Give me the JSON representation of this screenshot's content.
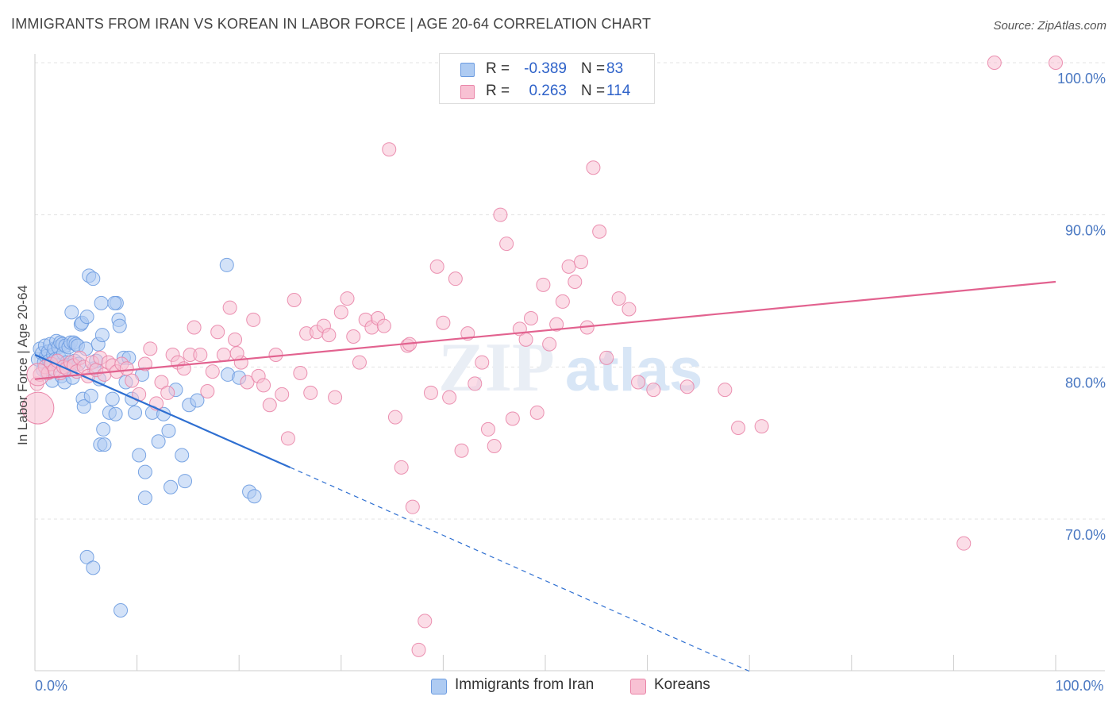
{
  "title": "IMMIGRANTS FROM IRAN VS KOREAN IN LABOR FORCE | AGE 20-64 CORRELATION CHART",
  "source": "Source: ZipAtlas.com",
  "watermark": {
    "zip": "ZIP",
    "atlas": "atlas"
  },
  "legend": {
    "r_label": "R =",
    "n_label": "N =",
    "rows": [
      {
        "r": "-0.389",
        "n": "83",
        "color": "#aecbf2",
        "border": "#6b9be0"
      },
      {
        "r": "0.263",
        "n": "114",
        "color": "#f8c1d3",
        "border": "#e985a8"
      }
    ]
  },
  "bottom_legend": [
    {
      "label": "Immigrants from Iran",
      "color": "#aecbf2",
      "border": "#6b9be0"
    },
    {
      "label": "Koreans",
      "color": "#f8c1d3",
      "border": "#e985a8"
    }
  ],
  "chart_data": {
    "type": "scatter",
    "ylabel": "In Labor Force | Age 20-64",
    "xlim": [
      0,
      100
    ],
    "ylim": [
      60,
      100
    ],
    "y_ticks": [
      {
        "value": 100,
        "label": "100.0%"
      },
      {
        "value": 90,
        "label": "90.0%"
      },
      {
        "value": 80,
        "label": "80.0%"
      },
      {
        "value": 70,
        "label": "70.0%"
      }
    ],
    "x_tick_labels": [
      {
        "value": 0,
        "label": "0.0%"
      },
      {
        "value": 100,
        "label": "100.0%"
      }
    ],
    "grid": true,
    "series": [
      {
        "name": "Immigrants from Iran",
        "color": "#6b9be0",
        "fill": "#aecbf2",
        "trend": {
          "x0": 0,
          "y0": 80.8,
          "x1": 25,
          "y1": 73.4,
          "dash_x1": 70,
          "dash_y1": 60
        },
        "points": [
          [
            0.3,
            80.5
          ],
          [
            0.5,
            81.2
          ],
          [
            0.7,
            80.9
          ],
          [
            0.8,
            79.8
          ],
          [
            0.9,
            80.3
          ],
          [
            1.0,
            81.4
          ],
          [
            1.1,
            80.7
          ],
          [
            1.2,
            79.6
          ],
          [
            1.3,
            81.0
          ],
          [
            1.4,
            80.4
          ],
          [
            1.5,
            81.5
          ],
          [
            1.6,
            80.2
          ],
          [
            1.7,
            79.1
          ],
          [
            1.8,
            80.8
          ],
          [
            1.9,
            81.2
          ],
          [
            2.0,
            80.5
          ],
          [
            2.1,
            81.7
          ],
          [
            2.2,
            80.1
          ],
          [
            2.3,
            81.3
          ],
          [
            2.4,
            80.6
          ],
          [
            2.5,
            81.6
          ],
          [
            2.6,
            79.4
          ],
          [
            2.7,
            81.5
          ],
          [
            2.8,
            80.9
          ],
          [
            2.9,
            79.0
          ],
          [
            3.0,
            81.4
          ],
          [
            3.1,
            80.3
          ],
          [
            3.2,
            80.1
          ],
          [
            3.3,
            81.3
          ],
          [
            3.4,
            80.0
          ],
          [
            3.5,
            81.6
          ],
          [
            3.6,
            83.6
          ],
          [
            3.7,
            79.3
          ],
          [
            3.8,
            81.6
          ],
          [
            3.9,
            80.4
          ],
          [
            4.0,
            81.5
          ],
          [
            4.2,
            81.4
          ],
          [
            4.3,
            80.2
          ],
          [
            4.5,
            82.8
          ],
          [
            4.6,
            82.9
          ],
          [
            4.7,
            77.9
          ],
          [
            4.8,
            77.4
          ],
          [
            5.0,
            81.2
          ],
          [
            5.1,
            83.3
          ],
          [
            5.3,
            86.0
          ],
          [
            5.5,
            78.1
          ],
          [
            5.7,
            85.8
          ],
          [
            5.8,
            79.9
          ],
          [
            6.0,
            80.4
          ],
          [
            6.2,
            81.5
          ],
          [
            6.3,
            79.2
          ],
          [
            6.4,
            74.9
          ],
          [
            6.5,
            84.2
          ],
          [
            6.6,
            82.1
          ],
          [
            6.7,
            75.9
          ],
          [
            6.8,
            74.9
          ],
          [
            7.3,
            77.0
          ],
          [
            7.6,
            77.9
          ],
          [
            7.9,
            76.9
          ],
          [
            8.0,
            84.2
          ],
          [
            8.2,
            83.1
          ],
          [
            8.3,
            82.7
          ],
          [
            8.4,
            64.0
          ],
          [
            8.7,
            80.6
          ],
          [
            8.9,
            79.0
          ],
          [
            9.2,
            80.6
          ],
          [
            9.5,
            77.9
          ],
          [
            9.8,
            77.0
          ],
          [
            10.2,
            74.2
          ],
          [
            10.5,
            79.5
          ],
          [
            10.8,
            73.1
          ],
          [
            10.8,
            71.4
          ],
          [
            11.5,
            77.0
          ],
          [
            12.1,
            75.1
          ],
          [
            12.6,
            76.9
          ],
          [
            13.1,
            75.8
          ],
          [
            13.3,
            72.1
          ],
          [
            13.8,
            78.5
          ],
          [
            14.4,
            74.2
          ],
          [
            14.7,
            72.5
          ],
          [
            15.1,
            77.5
          ],
          [
            15.9,
            77.8
          ],
          [
            18.8,
            86.7
          ],
          [
            18.9,
            79.5
          ],
          [
            20.0,
            79.3
          ],
          [
            21.0,
            71.8
          ],
          [
            21.5,
            71.5
          ],
          [
            7.8,
            84.2
          ],
          [
            5.1,
            67.5
          ],
          [
            5.7,
            66.8
          ]
        ]
      },
      {
        "name": "Koreans",
        "color": "#e985a8",
        "fill": "#f8c1d3",
        "trend": {
          "x0": 0,
          "y0": 79.2,
          "x1": 100,
          "y1": 85.6
        },
        "points": [
          [
            0.2,
            78.9
          ],
          [
            0.5,
            79.5
          ],
          [
            1.0,
            80.0
          ],
          [
            1.3,
            79.6
          ],
          [
            1.6,
            80.2
          ],
          [
            1.9,
            79.8
          ],
          [
            2.2,
            80.4
          ],
          [
            2.5,
            79.6
          ],
          [
            2.8,
            80.0
          ],
          [
            3.1,
            79.9
          ],
          [
            3.5,
            80.3
          ],
          [
            3.8,
            80.1
          ],
          [
            4.1,
            79.7
          ],
          [
            4.4,
            80.6
          ],
          [
            4.8,
            80.0
          ],
          [
            5.2,
            79.4
          ],
          [
            5.6,
            80.3
          ],
          [
            6.0,
            79.8
          ],
          [
            6.4,
            80.6
          ],
          [
            6.8,
            79.5
          ],
          [
            7.2,
            80.3
          ],
          [
            7.6,
            80.1
          ],
          [
            8.0,
            79.7
          ],
          [
            8.5,
            80.2
          ],
          [
            9.0,
            79.9
          ],
          [
            9.5,
            79.1
          ],
          [
            10.2,
            78.2
          ],
          [
            10.8,
            80.2
          ],
          [
            11.3,
            81.2
          ],
          [
            11.9,
            77.6
          ],
          [
            12.4,
            79.0
          ],
          [
            13.0,
            78.3
          ],
          [
            13.5,
            80.8
          ],
          [
            14.0,
            80.3
          ],
          [
            14.6,
            79.9
          ],
          [
            15.2,
            80.8
          ],
          [
            15.6,
            82.6
          ],
          [
            16.2,
            80.8
          ],
          [
            16.9,
            78.4
          ],
          [
            17.4,
            79.7
          ],
          [
            17.9,
            82.3
          ],
          [
            18.5,
            80.8
          ],
          [
            19.1,
            83.9
          ],
          [
            19.6,
            81.8
          ],
          [
            20.2,
            80.3
          ],
          [
            20.8,
            79.0
          ],
          [
            21.4,
            83.1
          ],
          [
            21.9,
            79.4
          ],
          [
            22.4,
            78.8
          ],
          [
            23.0,
            77.5
          ],
          [
            23.6,
            80.8
          ],
          [
            24.2,
            78.2
          ],
          [
            24.8,
            75.3
          ],
          [
            25.4,
            84.4
          ],
          [
            26.0,
            79.6
          ],
          [
            26.6,
            82.2
          ],
          [
            27.0,
            78.3
          ],
          [
            27.6,
            82.3
          ],
          [
            28.3,
            82.7
          ],
          [
            28.8,
            82.1
          ],
          [
            29.4,
            78.0
          ],
          [
            30.0,
            83.6
          ],
          [
            30.6,
            84.5
          ],
          [
            31.2,
            82.0
          ],
          [
            31.8,
            80.3
          ],
          [
            32.4,
            83.1
          ],
          [
            33.0,
            82.6
          ],
          [
            33.6,
            83.2
          ],
          [
            34.2,
            82.7
          ],
          [
            34.7,
            94.3
          ],
          [
            35.3,
            76.7
          ],
          [
            35.9,
            73.4
          ],
          [
            36.5,
            81.4
          ],
          [
            37.0,
            70.8
          ],
          [
            37.6,
            61.4
          ],
          [
            38.2,
            63.3
          ],
          [
            38.8,
            78.3
          ],
          [
            39.4,
            86.6
          ],
          [
            40.0,
            82.9
          ],
          [
            40.6,
            78.0
          ],
          [
            41.2,
            85.8
          ],
          [
            41.8,
            74.5
          ],
          [
            42.4,
            82.2
          ],
          [
            43.1,
            78.9
          ],
          [
            43.8,
            80.3
          ],
          [
            44.4,
            75.9
          ],
          [
            45.0,
            74.8
          ],
          [
            45.6,
            90.0
          ],
          [
            46.2,
            88.1
          ],
          [
            46.8,
            76.6
          ],
          [
            47.5,
            82.5
          ],
          [
            48.1,
            81.8
          ],
          [
            48.6,
            83.2
          ],
          [
            49.2,
            77.0
          ],
          [
            49.8,
            85.4
          ],
          [
            50.4,
            81.5
          ],
          [
            51.1,
            82.8
          ],
          [
            51.7,
            84.3
          ],
          [
            52.3,
            86.6
          ],
          [
            52.9,
            85.6
          ],
          [
            53.5,
            86.9
          ],
          [
            54.1,
            82.6
          ],
          [
            54.7,
            93.1
          ],
          [
            55.3,
            88.9
          ],
          [
            56.0,
            80.6
          ],
          [
            57.2,
            84.5
          ],
          [
            58.2,
            83.8
          ],
          [
            59.1,
            79.0
          ],
          [
            60.6,
            78.5
          ],
          [
            63.9,
            78.7
          ],
          [
            67.6,
            78.5
          ],
          [
            68.9,
            76.0
          ],
          [
            71.2,
            76.1
          ],
          [
            91.0,
            68.4
          ],
          [
            94.0,
            100.0
          ],
          [
            100.0,
            100.0
          ],
          [
            19.8,
            80.9
          ],
          [
            36.7,
            81.5
          ]
        ]
      }
    ]
  }
}
